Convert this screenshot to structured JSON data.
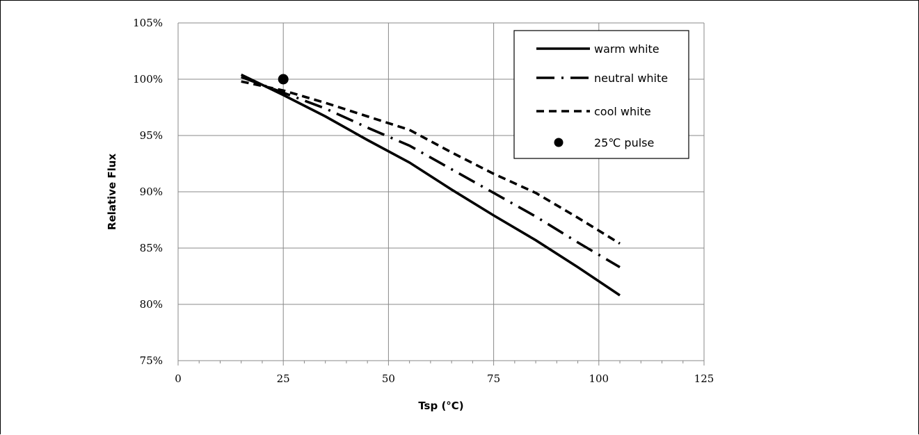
{
  "chart_data": {
    "type": "line",
    "title": "",
    "xlabel": "Tsp (°C)",
    "ylabel": "Relative Flux",
    "xlim": [
      0,
      125
    ],
    "ylim": [
      75,
      105
    ],
    "x_ticks": [
      0,
      25,
      50,
      75,
      100,
      125
    ],
    "x_tick_labels": [
      "0",
      "25",
      "50",
      "75",
      "100",
      "125"
    ],
    "y_ticks": [
      75,
      80,
      85,
      90,
      95,
      100,
      105
    ],
    "y_tick_labels": [
      "75%",
      "80%",
      "85%",
      "90%",
      "95%",
      "100%",
      "105%"
    ],
    "x_minor_step": 5,
    "grid": true,
    "legend_position": "top-right",
    "series": [
      {
        "name": "warm white",
        "style": "solid",
        "color": "#000000",
        "x": [
          15,
          25,
          35,
          45,
          55,
          65,
          75,
          85,
          95,
          105
        ],
        "y": [
          100.4,
          98.6,
          96.7,
          94.6,
          92.6,
          90.2,
          87.9,
          85.7,
          83.3,
          80.8
        ]
      },
      {
        "name": "neutral white",
        "style": "dash-dot",
        "color": "#000000",
        "x": [
          15,
          25,
          35,
          45,
          55,
          65,
          75,
          85,
          95,
          105
        ],
        "y": [
          100.2,
          98.8,
          97.4,
          95.7,
          94.1,
          92.0,
          89.9,
          87.8,
          85.5,
          83.3
        ]
      },
      {
        "name": "cool white",
        "style": "dashed",
        "color": "#000000",
        "x": [
          15,
          25,
          35,
          45,
          55,
          65,
          75,
          85,
          95,
          105
        ],
        "y": [
          99.8,
          99.0,
          97.9,
          96.7,
          95.5,
          93.5,
          91.6,
          89.9,
          87.7,
          85.4
        ]
      },
      {
        "name": "25℃ pulse",
        "style": "marker",
        "color": "#000000",
        "x": [
          25
        ],
        "y": [
          100
        ]
      }
    ]
  }
}
